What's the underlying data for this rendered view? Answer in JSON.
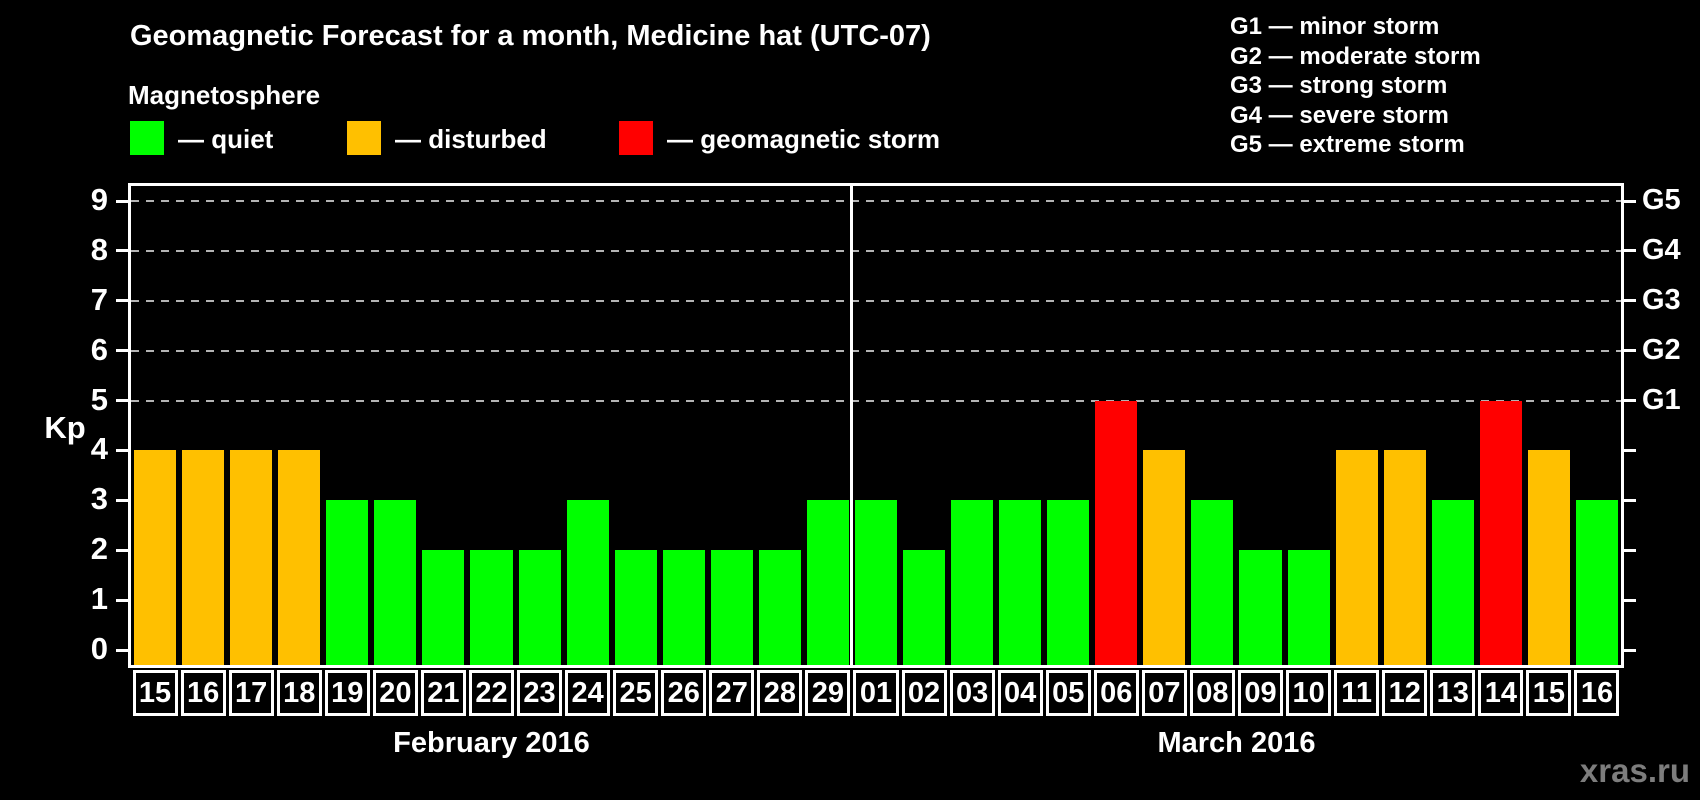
{
  "header": {
    "title": "Geomagnetic Forecast for a month, Medicine hat (UTC-07)",
    "subtitle": "Magnetosphere"
  },
  "legend": [
    {
      "key": "quiet",
      "label": "— quiet"
    },
    {
      "key": "disturbed",
      "label": "— disturbed"
    },
    {
      "key": "storm",
      "label": "— geomagnetic storm"
    }
  ],
  "g_scale_legend": [
    "G1 — minor storm",
    "G2 — moderate storm",
    "G3 — strong storm",
    "G4 — severe storm",
    "G5 — extreme storm"
  ],
  "watermark": "xras.ru",
  "colors": {
    "background": "#000000",
    "text": "#ffffff",
    "quiet": "#00ff00",
    "disturbed": "#ffc000",
    "storm": "#ff0000",
    "grid": "#b4b4b4",
    "watermark": "#7d7d7d"
  },
  "chart_data": {
    "type": "bar",
    "title": "Geomagnetic Forecast for a month, Medicine hat (UTC-07)",
    "ylabel": "Kp",
    "ylim": [
      -0.4,
      9.4
    ],
    "yticks": [
      0,
      1,
      2,
      3,
      4,
      5,
      6,
      7,
      8,
      9
    ],
    "gridlines_at": [
      5,
      6,
      7,
      8,
      9
    ],
    "grid": "dashed horizontal lines at storm levels only",
    "legend_position": "top-left",
    "right_axis": [
      {
        "kp": 5,
        "label": "G1"
      },
      {
        "kp": 6,
        "label": "G2"
      },
      {
        "kp": 7,
        "label": "G3"
      },
      {
        "kp": 8,
        "label": "G4"
      },
      {
        "kp": 9,
        "label": "G5"
      }
    ],
    "months": [
      {
        "label": "February 2016",
        "days": [
          {
            "day": "15",
            "kp": 4,
            "status": "disturbed"
          },
          {
            "day": "16",
            "kp": 4,
            "status": "disturbed"
          },
          {
            "day": "17",
            "kp": 4,
            "status": "disturbed"
          },
          {
            "day": "18",
            "kp": 4,
            "status": "disturbed"
          },
          {
            "day": "19",
            "kp": 3,
            "status": "quiet"
          },
          {
            "day": "20",
            "kp": 3,
            "status": "quiet"
          },
          {
            "day": "21",
            "kp": 2,
            "status": "quiet"
          },
          {
            "day": "22",
            "kp": 2,
            "status": "quiet"
          },
          {
            "day": "23",
            "kp": 2,
            "status": "quiet"
          },
          {
            "day": "24",
            "kp": 3,
            "status": "quiet"
          },
          {
            "day": "25",
            "kp": 2,
            "status": "quiet"
          },
          {
            "day": "26",
            "kp": 2,
            "status": "quiet"
          },
          {
            "day": "27",
            "kp": 2,
            "status": "quiet"
          },
          {
            "day": "28",
            "kp": 2,
            "status": "quiet"
          },
          {
            "day": "29",
            "kp": 3,
            "status": "quiet"
          }
        ]
      },
      {
        "label": "March 2016",
        "days": [
          {
            "day": "01",
            "kp": 3,
            "status": "quiet"
          },
          {
            "day": "02",
            "kp": 2,
            "status": "quiet"
          },
          {
            "day": "03",
            "kp": 3,
            "status": "quiet"
          },
          {
            "day": "04",
            "kp": 3,
            "status": "quiet"
          },
          {
            "day": "05",
            "kp": 3,
            "status": "quiet"
          },
          {
            "day": "06",
            "kp": 5,
            "status": "storm"
          },
          {
            "day": "07",
            "kp": 4,
            "status": "disturbed"
          },
          {
            "day": "08",
            "kp": 3,
            "status": "quiet"
          },
          {
            "day": "09",
            "kp": 2,
            "status": "quiet"
          },
          {
            "day": "10",
            "kp": 2,
            "status": "quiet"
          },
          {
            "day": "11",
            "kp": 4,
            "status": "disturbed"
          },
          {
            "day": "12",
            "kp": 4,
            "status": "disturbed"
          },
          {
            "day": "13",
            "kp": 3,
            "status": "quiet"
          },
          {
            "day": "14",
            "kp": 5,
            "status": "storm"
          },
          {
            "day": "15",
            "kp": 4,
            "status": "disturbed"
          },
          {
            "day": "16",
            "kp": 3,
            "status": "quiet"
          }
        ]
      }
    ]
  }
}
